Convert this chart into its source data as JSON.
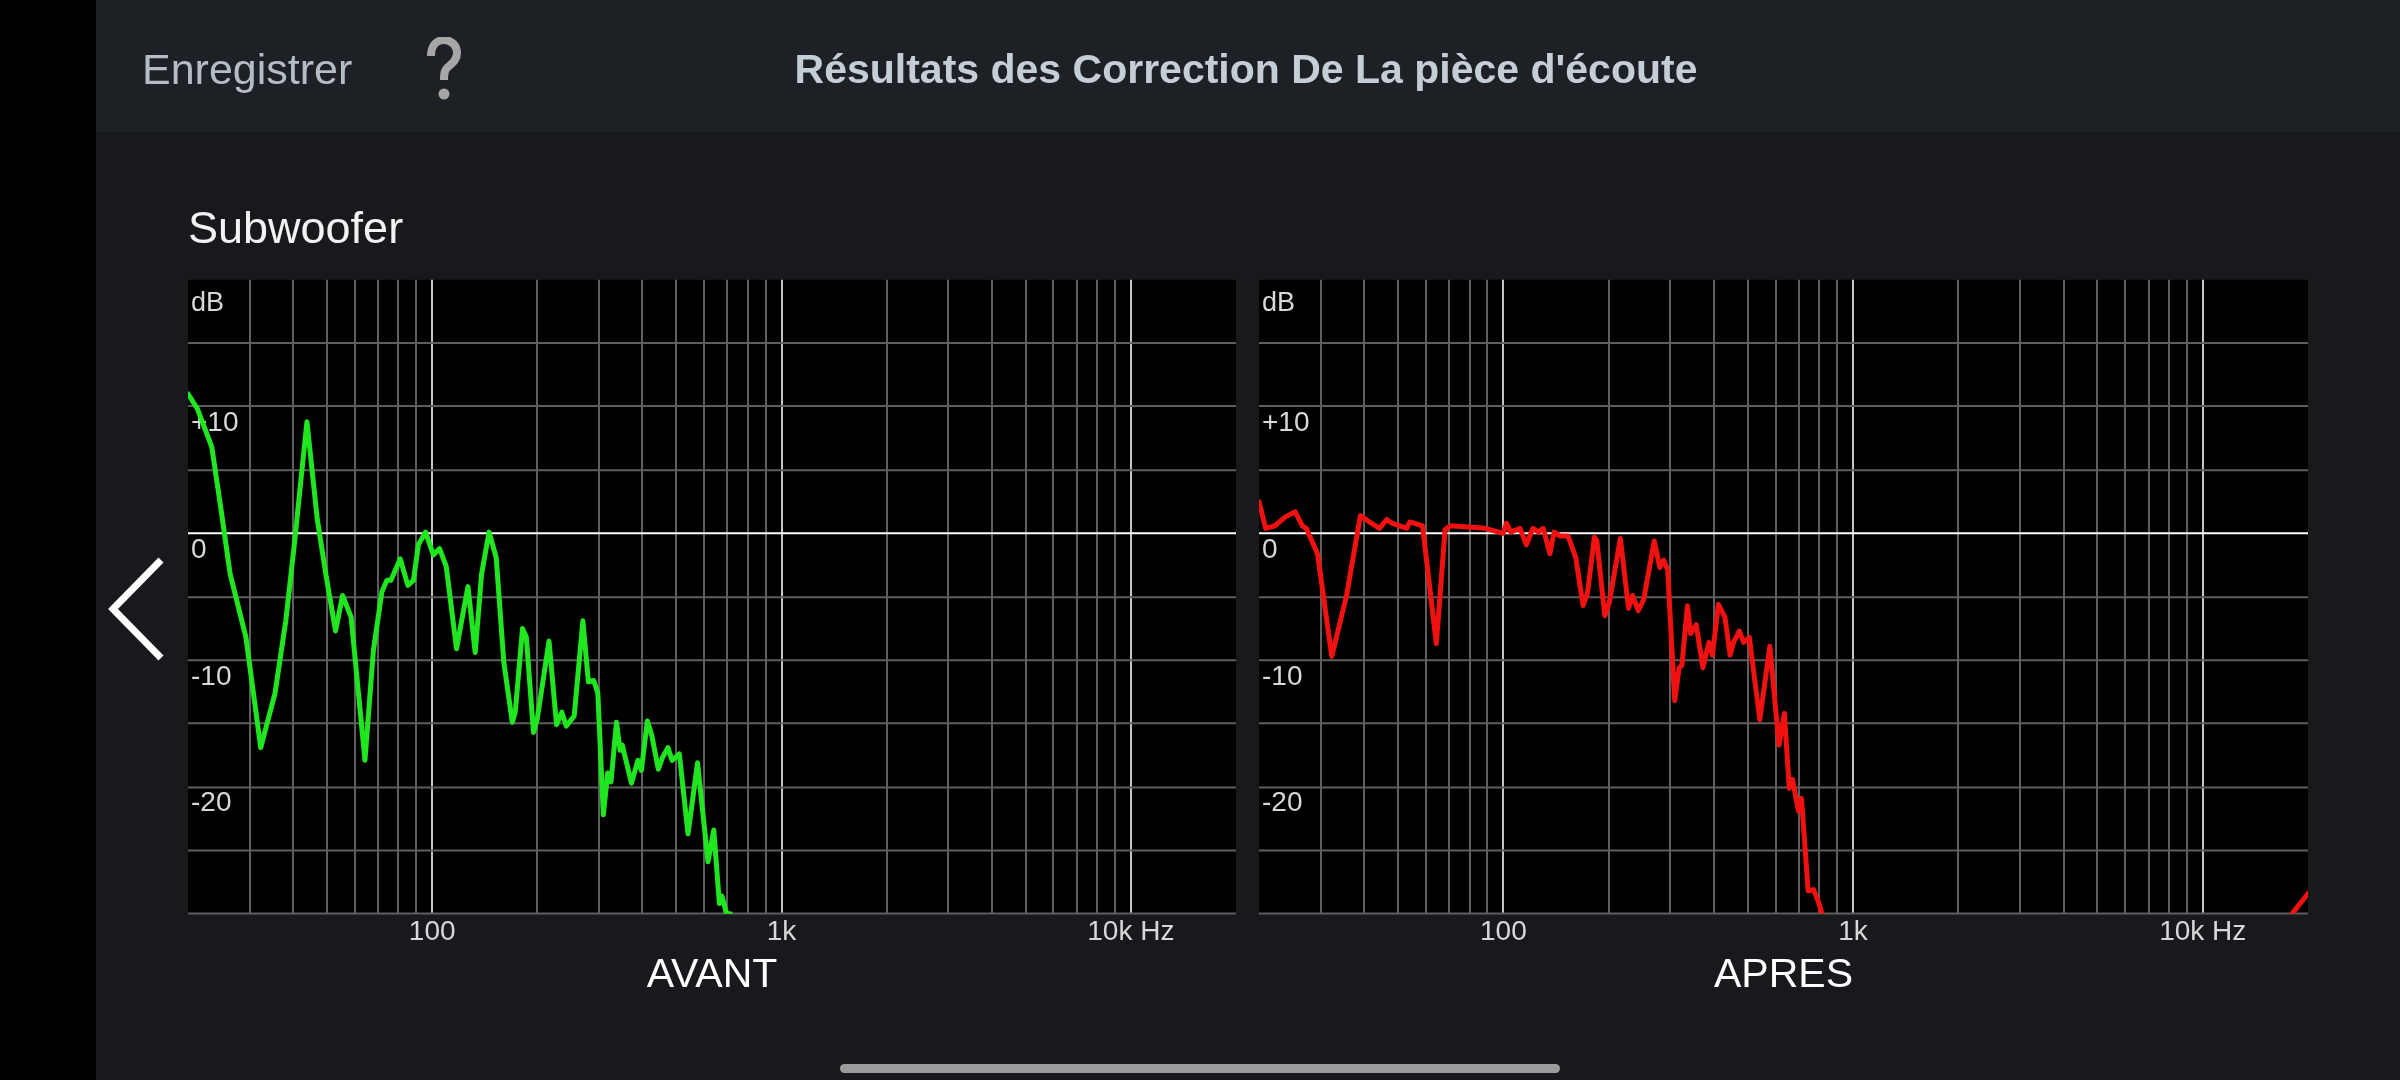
{
  "chart_data": [
    {
      "type": "line",
      "title": "Résultats des Correction De La pièce d'écoute",
      "subtitle": "Subwoofer",
      "annotations": [
        "Enregistrer"
      ],
      "xlabel": "AVANT",
      "ylabel": "dB",
      "log": "x",
      "grid": true,
      "marker": "none",
      "xlim": [
        20,
        20000
      ],
      "xticks": [
        {
          "value": 30,
          "label": null
        },
        {
          "value": 40,
          "label": null
        },
        {
          "value": 50,
          "label": null
        },
        {
          "value": 60,
          "label": null
        },
        {
          "value": 70,
          "label": null
        },
        {
          "value": 80,
          "label": null
        },
        {
          "value": 90,
          "label": null
        },
        100,
        {
          "value": 200,
          "label": null
        },
        {
          "value": 300,
          "label": null
        },
        {
          "value": 400,
          "label": null
        },
        {
          "value": 500,
          "label": null
        },
        {
          "value": 600,
          "label": null
        },
        {
          "value": 700,
          "label": null
        },
        {
          "value": 800,
          "label": null
        },
        {
          "value": 900,
          "label": null
        },
        {
          "value": 1000,
          "label": "1k"
        },
        {
          "value": 2000,
          "label": null
        },
        {
          "value": 3000,
          "label": null
        },
        {
          "value": 4000,
          "label": null
        },
        {
          "value": 5000,
          "label": null
        },
        {
          "value": 6000,
          "label": null
        },
        {
          "value": 7000,
          "label": null
        },
        {
          "value": 8000,
          "label": null
        },
        {
          "value": 9000,
          "label": null
        },
        {
          "value": 10000,
          "label": "10k Hz"
        }
      ],
      "ylim": [
        -30,
        20
      ],
      "yticks": [
        {
          "value": 15,
          "label": null
        },
        {
          "value": 10,
          "label": "+10"
        },
        {
          "value": 5,
          "label": null
        },
        0,
        {
          "value": -5,
          "label": null
        },
        -10,
        {
          "value": -15,
          "label": null
        },
        -20,
        {
          "value": -25,
          "label": null
        },
        {
          "value": -30,
          "label": null
        }
      ],
      "ref_lines": [
        {
          "axis": "y",
          "value": 0,
          "color": "#ffffff"
        }
      ],
      "color": "#1fe61f",
      "x": [
        20,
        21.3,
        23.4,
        24.8,
        26.4,
        29.3,
        32.3,
        35.5,
        38.1,
        40.3,
        43.8,
        46.9,
        49.6,
        52.9,
        55.4,
        58.6,
        64.2,
        67.9,
        71.8,
        74.2,
        76.2,
        81,
        85.2,
        88.4,
        91.3,
        95.7,
        100.8,
        105,
        109.7,
        117.4,
        126.6,
        132.8,
        138.5,
        145.5,
        152.5,
        160.4,
        169.6,
        172.9,
        181.4,
        186,
        195,
        200,
        216,
        227,
        235,
        242,
        255,
        270,
        280,
        290,
        298,
        309,
        318,
        325,
        337,
        345,
        350,
        372,
        388,
        397,
        413,
        425,
        444,
        456,
        473,
        486,
        510,
        540,
        575,
        616,
        640,
        664,
        675,
        696,
        714
      ],
      "values": [
        11,
        9.8,
        6.8,
        2.1,
        -3.2,
        -8.2,
        -16.9,
        -12.6,
        -6.9,
        -0.9,
        8.8,
        1.1,
        -3.2,
        -7.7,
        -4.9,
        -6.6,
        -17.9,
        -9.2,
        -4.6,
        -3.7,
        -3.7,
        -2,
        -4.1,
        -3.7,
        -0.9,
        0.1,
        -1.7,
        -1.2,
        -2.6,
        -9.1,
        -4.2,
        -9.4,
        -3.2,
        0.1,
        -1.9,
        -10.2,
        -14.9,
        -14.1,
        -7.5,
        -8.2,
        -15.7,
        -14.6,
        -8.5,
        -15.1,
        -14.1,
        -15.2,
        -14.4,
        -6.9,
        -11.7,
        -11.6,
        -12.6,
        -22.2,
        -18.9,
        -19.6,
        -14.9,
        -17.1,
        -16.7,
        -19.7,
        -17.9,
        -18.7,
        -14.8,
        -15.9,
        -18.6,
        -17.7,
        -16.9,
        -17.9,
        -17.4,
        -23.7,
        -18.1,
        -25.9,
        -23.4,
        -29.2,
        -28.6,
        -30,
        -30
      ]
    },
    {
      "type": "line",
      "xlabel": "APRES",
      "ylabel": "dB",
      "log": "x",
      "grid": true,
      "marker": "none",
      "xlim": [
        20,
        20000
      ],
      "xticks": [
        {
          "value": 30,
          "label": null
        },
        {
          "value": 40,
          "label": null
        },
        {
          "value": 50,
          "label": null
        },
        {
          "value": 60,
          "label": null
        },
        {
          "value": 70,
          "label": null
        },
        {
          "value": 80,
          "label": null
        },
        {
          "value": 90,
          "label": null
        },
        100,
        {
          "value": 200,
          "label": null
        },
        {
          "value": 300,
          "label": null
        },
        {
          "value": 400,
          "label": null
        },
        {
          "value": 500,
          "label": null
        },
        {
          "value": 600,
          "label": null
        },
        {
          "value": 700,
          "label": null
        },
        {
          "value": 800,
          "label": null
        },
        {
          "value": 900,
          "label": null
        },
        {
          "value": 1000,
          "label": "1k"
        },
        {
          "value": 2000,
          "label": null
        },
        {
          "value": 3000,
          "label": null
        },
        {
          "value": 4000,
          "label": null
        },
        {
          "value": 5000,
          "label": null
        },
        {
          "value": 6000,
          "label": null
        },
        {
          "value": 7000,
          "label": null
        },
        {
          "value": 8000,
          "label": null
        },
        {
          "value": 9000,
          "label": null
        },
        {
          "value": 10000,
          "label": "10k Hz"
        }
      ],
      "ylim": [
        -30,
        20
      ],
      "yticks": [
        {
          "value": 15,
          "label": null
        },
        {
          "value": 10,
          "label": "+10"
        },
        {
          "value": 5,
          "label": null
        },
        0,
        {
          "value": -5,
          "label": null
        },
        -10,
        {
          "value": -15,
          "label": null
        },
        -20,
        {
          "value": -25,
          "label": null
        },
        {
          "value": -30,
          "label": null
        }
      ],
      "ref_lines": [
        {
          "axis": "y",
          "value": 0,
          "color": "#ffffff"
        }
      ],
      "color": "#f21111",
      "x": [
        20,
        20.9,
        22.2,
        23.8,
        25.4,
        26.6,
        27.3,
        29.4,
        32.3,
        35.6,
        39,
        41.9,
        44.2,
        46.4,
        48,
        52.9,
        54,
        58.7,
        64.3,
        68.1,
        70.6,
        88.7,
        99.9,
        102,
        105,
        111.6,
        116.3,
        121.5,
        126,
        130,
        135.8,
        139.6,
        145,
        153,
        161,
        169,
        174,
        182,
        185,
        195,
        201,
        216,
        228,
        234,
        243,
        252,
        270,
        280,
        287,
        295,
        309,
        318,
        324,
        336,
        343,
        356,
        372,
        387,
        396,
        412,
        430,
        445,
        455,
        473,
        486,
        505,
        541,
        578,
        614,
        636,
        657,
        671,
        698,
        712,
        744,
        771,
        797,
        815,
        1000,
        18000,
        20000
      ],
      "values": [
        2.5,
        0.4,
        0.6,
        1.3,
        1.7,
        0.6,
        0.4,
        -1.6,
        -9.7,
        -4.9,
        1.4,
        0.8,
        0.4,
        1.1,
        0.8,
        0.4,
        0.9,
        0.6,
        -8.7,
        0.3,
        0.6,
        0.4,
        0,
        0.8,
        0.1,
        0.4,
        -0.9,
        0.4,
        0.1,
        0.4,
        -1.6,
        0.1,
        -0.2,
        -0.2,
        -1.9,
        -5.7,
        -4.7,
        -0.3,
        -0.6,
        -6.5,
        -5.4,
        -0.4,
        -5.9,
        -4.9,
        -6.1,
        -5.2,
        -0.6,
        -2.7,
        -2.1,
        -2.9,
        -13.2,
        -10.6,
        -10.4,
        -5.7,
        -7.9,
        -7.2,
        -10.6,
        -8.6,
        -9.6,
        -5.6,
        -6.6,
        -9.6,
        -8.6,
        -7.7,
        -8.6,
        -8.2,
        -14.7,
        -8.9,
        -16.7,
        -14.2,
        -20.1,
        -19.4,
        -21.9,
        -20.9,
        -28.2,
        -28.1,
        -29.1,
        -30,
        null,
        -30,
        -28.4
      ]
    }
  ]
}
